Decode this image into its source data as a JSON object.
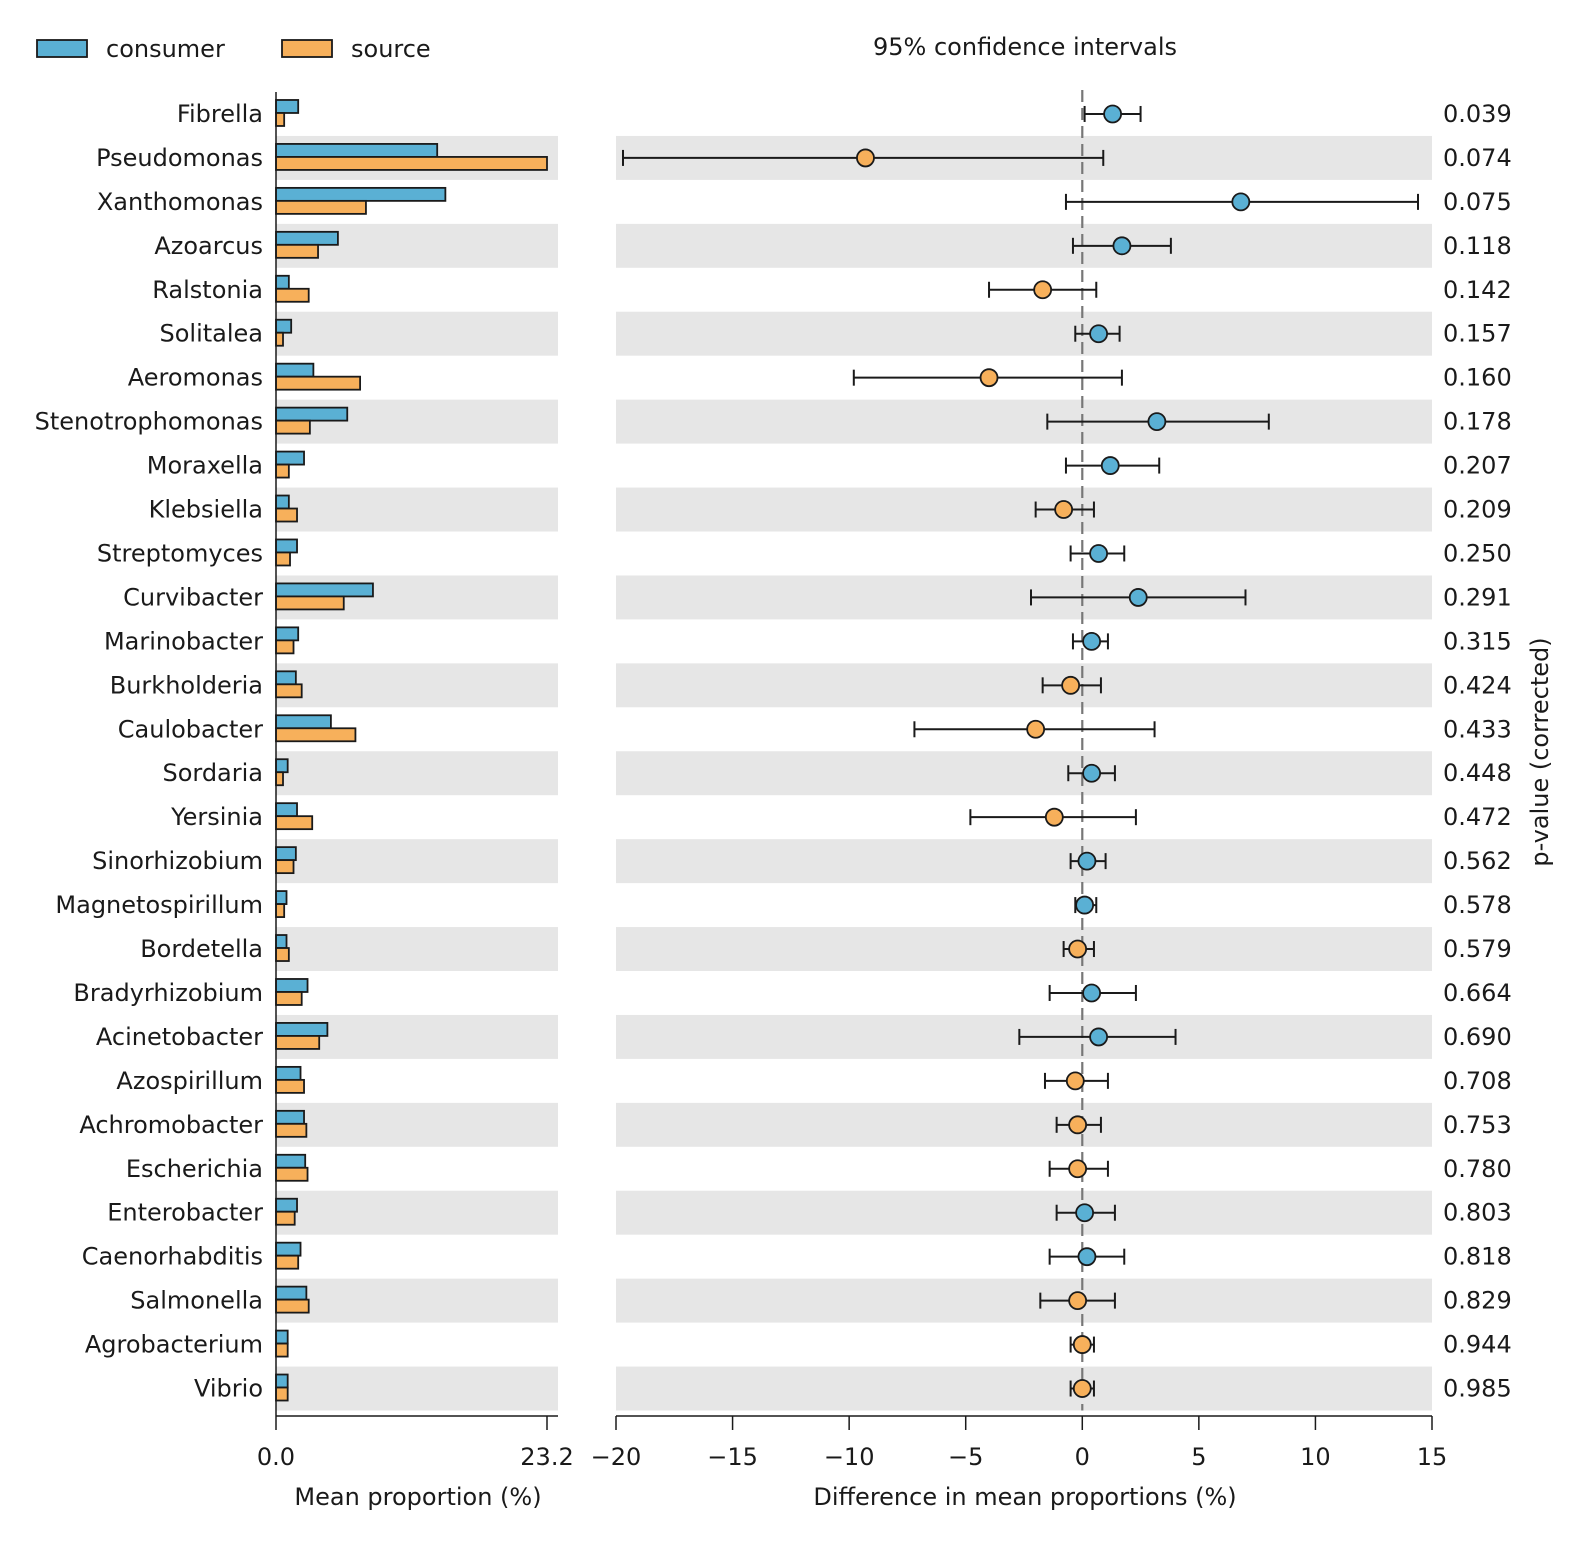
{
  "chart_data": {
    "type": "extended_error_bar",
    "legend": [
      {
        "name": "consumer",
        "color": "#5ab0d4"
      },
      {
        "name": "source",
        "color": "#f7b05b"
      }
    ],
    "ci_title": "95% confidence intervals",
    "bar_panel": {
      "xlabel": "Mean proportion (%)",
      "xlim": [
        0,
        23.2
      ],
      "tick_labels": [
        "0.0",
        "23.2"
      ]
    },
    "diff_panel": {
      "xlabel": "Difference in mean proportions (%)",
      "xlim": [
        -20,
        15
      ],
      "ticks": [
        -20,
        -15,
        -10,
        -5,
        0,
        5,
        10,
        15
      ],
      "tick_labels": [
        "−20",
        "−15",
        "−10",
        "−5",
        "0",
        "5",
        "10",
        "15"
      ]
    },
    "pvalue_label": "p-value (corrected)",
    "rows": [
      {
        "name": "Fibrella",
        "consumer": 1.9,
        "source": 0.7,
        "diff": 1.3,
        "lo": 0.1,
        "hi": 2.5,
        "p": "0.039"
      },
      {
        "name": "Pseudomonas",
        "consumer": 13.8,
        "source": 23.2,
        "diff": -9.3,
        "lo": -19.7,
        "hi": 0.9,
        "p": "0.074"
      },
      {
        "name": "Xanthomonas",
        "consumer": 14.5,
        "source": 7.7,
        "diff": 6.8,
        "lo": -0.7,
        "hi": 14.4,
        "p": "0.075"
      },
      {
        "name": "Azoarcus",
        "consumer": 5.3,
        "source": 3.6,
        "diff": 1.7,
        "lo": -0.4,
        "hi": 3.8,
        "p": "0.118"
      },
      {
        "name": "Ralstonia",
        "consumer": 1.1,
        "source": 2.8,
        "diff": -1.7,
        "lo": -4.0,
        "hi": 0.6,
        "p": "0.142"
      },
      {
        "name": "Solitalea",
        "consumer": 1.3,
        "source": 0.6,
        "diff": 0.7,
        "lo": -0.3,
        "hi": 1.6,
        "p": "0.157"
      },
      {
        "name": "Aeromonas",
        "consumer": 3.2,
        "source": 7.2,
        "diff": -4.0,
        "lo": -9.8,
        "hi": 1.7,
        "p": "0.160"
      },
      {
        "name": "Stenotrophomonas",
        "consumer": 6.1,
        "source": 2.9,
        "diff": 3.2,
        "lo": -1.5,
        "hi": 8.0,
        "p": "0.178"
      },
      {
        "name": "Moraxella",
        "consumer": 2.4,
        "source": 1.1,
        "diff": 1.2,
        "lo": -0.7,
        "hi": 3.3,
        "p": "0.207"
      },
      {
        "name": "Klebsiella",
        "consumer": 1.1,
        "source": 1.8,
        "diff": -0.8,
        "lo": -2.0,
        "hi": 0.5,
        "p": "0.209"
      },
      {
        "name": "Streptomyces",
        "consumer": 1.8,
        "source": 1.2,
        "diff": 0.7,
        "lo": -0.5,
        "hi": 1.8,
        "p": "0.250"
      },
      {
        "name": "Curvibacter",
        "consumer": 8.3,
        "source": 5.8,
        "diff": 2.4,
        "lo": -2.2,
        "hi": 7.0,
        "p": "0.291"
      },
      {
        "name": "Marinobacter",
        "consumer": 1.9,
        "source": 1.5,
        "diff": 0.4,
        "lo": -0.4,
        "hi": 1.1,
        "p": "0.315"
      },
      {
        "name": "Burkholderia",
        "consumer": 1.7,
        "source": 2.2,
        "diff": -0.5,
        "lo": -1.7,
        "hi": 0.8,
        "p": "0.424"
      },
      {
        "name": "Caulobacter",
        "consumer": 4.7,
        "source": 6.8,
        "diff": -2.0,
        "lo": -7.2,
        "hi": 3.1,
        "p": "0.433"
      },
      {
        "name": "Sordaria",
        "consumer": 1.0,
        "source": 0.6,
        "diff": 0.4,
        "lo": -0.6,
        "hi": 1.4,
        "p": "0.448"
      },
      {
        "name": "Yersinia",
        "consumer": 1.8,
        "source": 3.1,
        "diff": -1.2,
        "lo": -4.8,
        "hi": 2.3,
        "p": "0.472"
      },
      {
        "name": "Sinorhizobium",
        "consumer": 1.7,
        "source": 1.5,
        "diff": 0.2,
        "lo": -0.5,
        "hi": 1.0,
        "p": "0.562"
      },
      {
        "name": "Magnetospirillum",
        "consumer": 0.9,
        "source": 0.7,
        "diff": 0.1,
        "lo": -0.3,
        "hi": 0.6,
        "p": "0.578"
      },
      {
        "name": "Bordetella",
        "consumer": 0.9,
        "source": 1.1,
        "diff": -0.2,
        "lo": -0.8,
        "hi": 0.5,
        "p": "0.579"
      },
      {
        "name": "Bradyrhizobium",
        "consumer": 2.7,
        "source": 2.2,
        "diff": 0.4,
        "lo": -1.4,
        "hi": 2.3,
        "p": "0.664"
      },
      {
        "name": "Acinetobacter",
        "consumer": 4.4,
        "source": 3.7,
        "diff": 0.7,
        "lo": -2.7,
        "hi": 4.0,
        "p": "0.690"
      },
      {
        "name": "Azospirillum",
        "consumer": 2.1,
        "source": 2.4,
        "diff": -0.3,
        "lo": -1.6,
        "hi": 1.1,
        "p": "0.708"
      },
      {
        "name": "Achromobacter",
        "consumer": 2.4,
        "source": 2.6,
        "diff": -0.2,
        "lo": -1.1,
        "hi": 0.8,
        "p": "0.753"
      },
      {
        "name": "Escherichia",
        "consumer": 2.5,
        "source": 2.7,
        "diff": -0.2,
        "lo": -1.4,
        "hi": 1.1,
        "p": "0.780"
      },
      {
        "name": "Enterobacter",
        "consumer": 1.8,
        "source": 1.6,
        "diff": 0.1,
        "lo": -1.1,
        "hi": 1.4,
        "p": "0.803"
      },
      {
        "name": "Caenorhabditis",
        "consumer": 2.1,
        "source": 1.9,
        "diff": 0.2,
        "lo": -1.4,
        "hi": 1.8,
        "p": "0.818"
      },
      {
        "name": "Salmonella",
        "consumer": 2.6,
        "source": 2.8,
        "diff": -0.2,
        "lo": -1.8,
        "hi": 1.4,
        "p": "0.829"
      },
      {
        "name": "Agrobacterium",
        "consumer": 1.0,
        "source": 1.0,
        "diff": 0.0,
        "lo": -0.5,
        "hi": 0.5,
        "p": "0.944"
      },
      {
        "name": "Vibrio",
        "consumer": 1.0,
        "source": 1.0,
        "diff": 0.0,
        "lo": -0.5,
        "hi": 0.5,
        "p": "0.985"
      }
    ]
  }
}
